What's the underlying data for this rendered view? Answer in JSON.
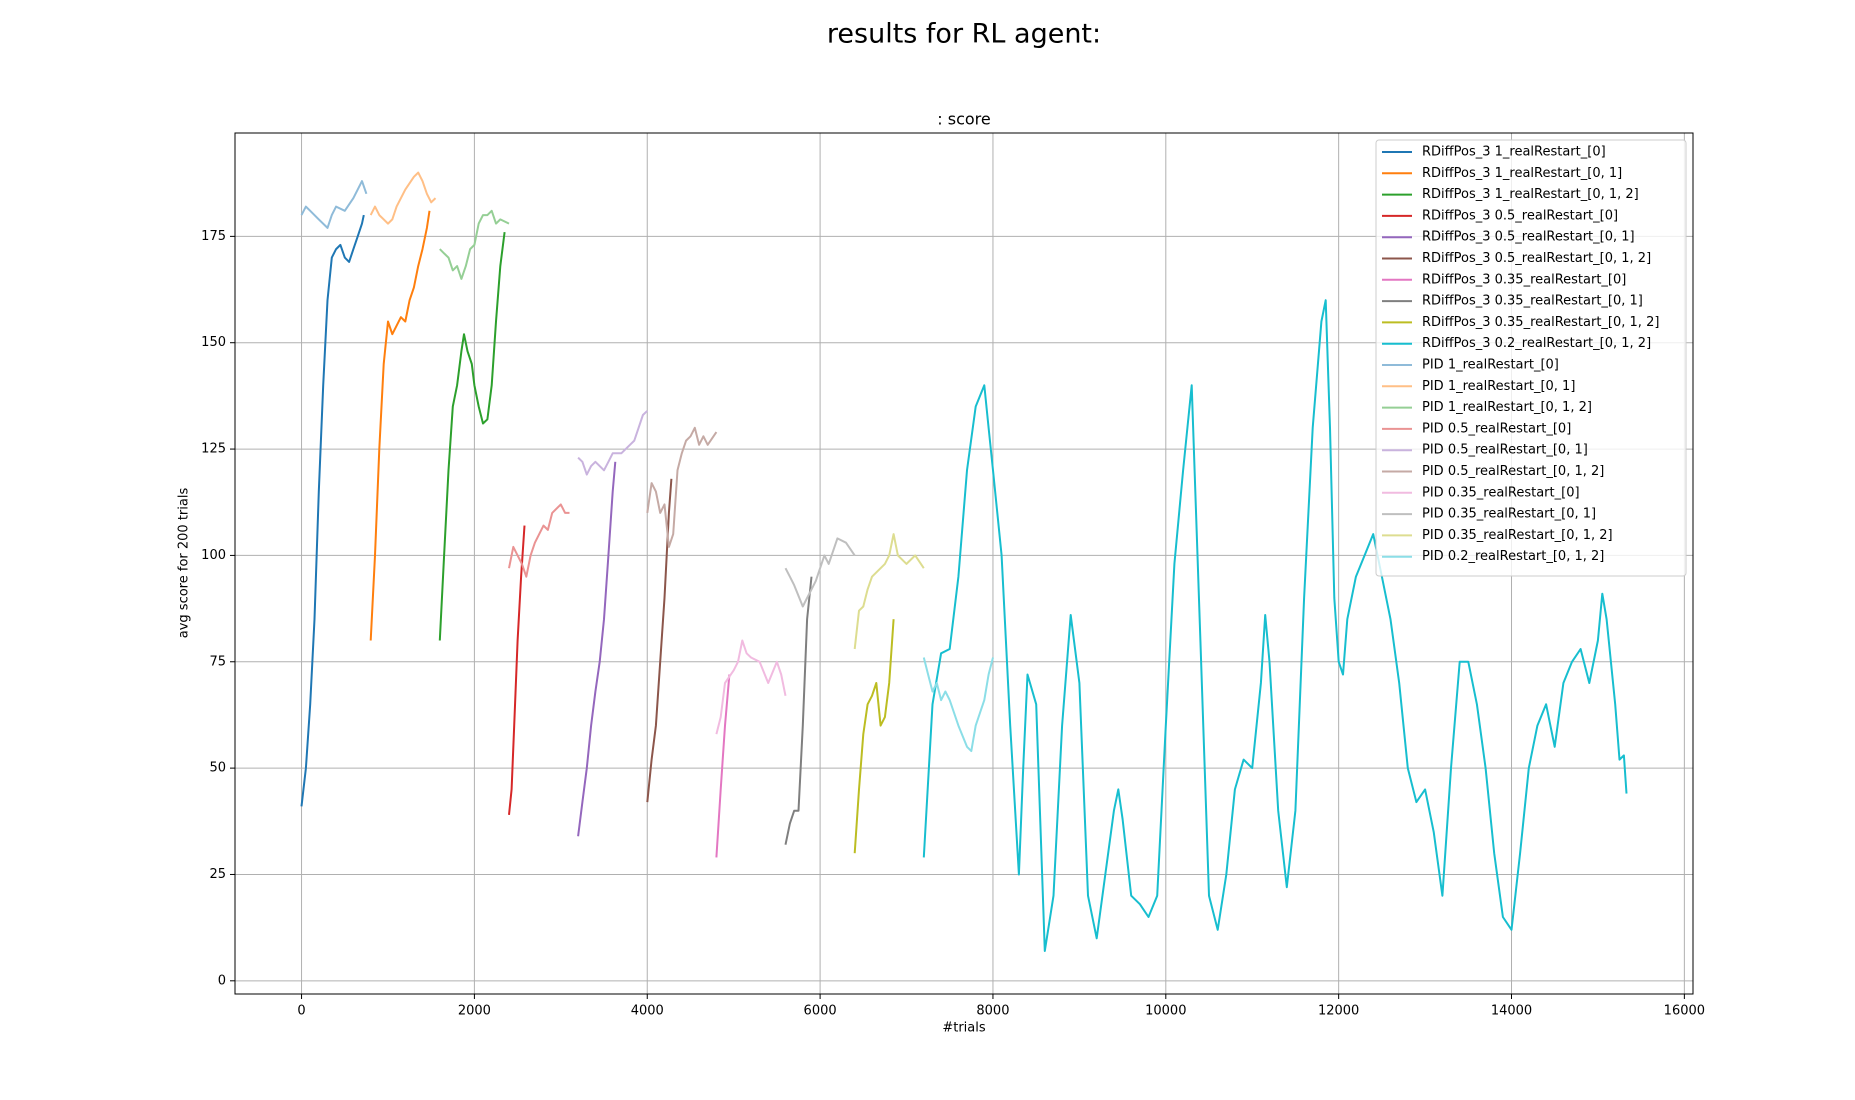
{
  "chart_data": {
    "type": "line",
    "title": "results for RL agent:",
    "subtitle": ": score",
    "x_label": "#trials",
    "y_label": "avg score for 200 trials",
    "xlim": [
      -770,
      16100
    ],
    "ylim": [
      -3.1,
      199.3
    ],
    "xticks": [
      0,
      2000,
      4000,
      6000,
      8000,
      10000,
      12000,
      14000,
      16000
    ],
    "yticks": [
      0,
      25,
      50,
      75,
      100,
      125,
      150,
      175
    ],
    "grid": true,
    "legend": "upper right",
    "series": [
      {
        "name": "RDiffPos_3 1_realRestart_[0]",
        "color": "#1f77b4",
        "x": [
          0,
          50,
          100,
          150,
          200,
          250,
          300,
          350,
          400,
          450,
          500,
          550,
          600,
          650,
          700,
          720
        ],
        "values": [
          41,
          50,
          65,
          85,
          115,
          140,
          160,
          170,
          172,
          173,
          170,
          169,
          172,
          175,
          178,
          180
        ]
      },
      {
        "name": "RDiffPos_3 1_realRestart_[0, 1]",
        "color": "#ff7f0e",
        "x": [
          800,
          850,
          900,
          950,
          1000,
          1050,
          1100,
          1150,
          1200,
          1250,
          1300,
          1350,
          1400,
          1450,
          1480
        ],
        "values": [
          80,
          100,
          125,
          145,
          155,
          152,
          154,
          156,
          155,
          160,
          163,
          168,
          172,
          177,
          181
        ]
      },
      {
        "name": "RDiffPos_3 1_realRestart_[0, 1, 2]",
        "color": "#2ca02c",
        "x": [
          1600,
          1650,
          1700,
          1750,
          1800,
          1850,
          1880,
          1920,
          1970,
          2000,
          2050,
          2100,
          2150,
          2200,
          2250,
          2300,
          2350
        ],
        "values": [
          80,
          100,
          120,
          135,
          140,
          148,
          152,
          148,
          145,
          140,
          135,
          131,
          132,
          140,
          155,
          168,
          176
        ]
      },
      {
        "name": "RDiffPos_3 0.5_realRestart_[0]",
        "color": "#d62728",
        "x": [
          2400,
          2430,
          2460,
          2500,
          2540,
          2580
        ],
        "values": [
          39,
          45,
          60,
          80,
          95,
          107
        ]
      },
      {
        "name": "RDiffPos_3 0.5_realRestart_[0, 1]",
        "color": "#9467bd",
        "x": [
          3200,
          3250,
          3300,
          3350,
          3400,
          3450,
          3500,
          3550,
          3600,
          3630
        ],
        "values": [
          34,
          42,
          50,
          60,
          68,
          75,
          85,
          100,
          115,
          122
        ]
      },
      {
        "name": "RDiffPos_3 0.5_realRestart_[0, 1, 2]",
        "color": "#8c564b",
        "x": [
          4000,
          4050,
          4100,
          4150,
          4200,
          4250,
          4280
        ],
        "values": [
          42,
          52,
          60,
          75,
          90,
          110,
          118
        ]
      },
      {
        "name": "RDiffPos_3 0.35_realRestart_[0]",
        "color": "#e377c2",
        "x": [
          4800,
          4850,
          4900,
          4950
        ],
        "values": [
          29,
          45,
          60,
          72
        ]
      },
      {
        "name": "RDiffPos_3 0.35_realRestart_[0, 1]",
        "color": "#7f7f7f",
        "x": [
          5600,
          5650,
          5700,
          5750,
          5800,
          5850,
          5900
        ],
        "values": [
          32,
          37,
          40,
          40,
          60,
          85,
          95
        ]
      },
      {
        "name": "RDiffPos_3 0.35_realRestart_[0, 1, 2]",
        "color": "#bcbd22",
        "x": [
          6400,
          6450,
          6500,
          6550,
          6600,
          6650,
          6700,
          6750,
          6800,
          6850
        ],
        "values": [
          30,
          45,
          58,
          65,
          67,
          70,
          60,
          62,
          70,
          85
        ]
      },
      {
        "name": "RDiffPos_3 0.2_realRestart_[0, 1, 2]",
        "color": "#17becf",
        "x": [
          7200,
          7300,
          7400,
          7500,
          7600,
          7700,
          7800,
          7900,
          7950,
          8000,
          8100,
          8200,
          8300,
          8350,
          8400,
          8500,
          8600,
          8700,
          8800,
          8900,
          9000,
          9100,
          9200,
          9300,
          9400,
          9450,
          9500,
          9600,
          9700,
          9800,
          9900,
          10000,
          10100,
          10200,
          10300,
          10400,
          10500,
          10600,
          10700,
          10800,
          10900,
          11000,
          11100,
          11150,
          11200,
          11300,
          11400,
          11500,
          11600,
          11700,
          11800,
          11850,
          11900,
          11950,
          12000,
          12050,
          12100,
          12200,
          12300,
          12400,
          12500,
          12600,
          12700,
          12800,
          12900,
          13000,
          13100,
          13200,
          13300,
          13400,
          13500,
          13600,
          13700,
          13800,
          13900,
          14000,
          14100,
          14200,
          14300,
          14400,
          14500,
          14600,
          14700,
          14800,
          14900,
          15000,
          15050,
          15100,
          15200,
          15250,
          15300,
          15330
        ],
        "values": [
          29,
          65,
          77,
          78,
          95,
          120,
          135,
          140,
          130,
          120,
          100,
          60,
          25,
          50,
          72,
          65,
          7,
          20,
          60,
          86,
          70,
          20,
          10,
          25,
          40,
          45,
          38,
          20,
          18,
          15,
          20,
          60,
          98,
          120,
          140,
          80,
          20,
          12,
          25,
          45,
          52,
          50,
          70,
          86,
          75,
          40,
          22,
          40,
          90,
          130,
          155,
          160,
          130,
          90,
          75,
          72,
          85,
          95,
          100,
          105,
          95,
          85,
          70,
          50,
          42,
          45,
          35,
          20,
          50,
          75,
          75,
          65,
          50,
          30,
          15,
          12,
          30,
          50,
          60,
          65,
          55,
          70,
          75,
          78,
          70,
          80,
          91,
          85,
          65,
          52,
          53,
          44
        ]
      },
      {
        "name": "PID 1_realRestart_[0]",
        "color": "#8fbbd9",
        "x": [
          0,
          50,
          100,
          200,
          300,
          350,
          400,
          500,
          600,
          700,
          750
        ],
        "values": [
          180,
          182,
          181,
          179,
          177,
          180,
          182,
          181,
          184,
          188,
          185
        ]
      },
      {
        "name": "PID 1_realRestart_[0, 1]",
        "color": "#ffbf86",
        "x": [
          800,
          850,
          900,
          1000,
          1050,
          1100,
          1200,
          1300,
          1350,
          1400,
          1450,
          1500,
          1550
        ],
        "values": [
          180,
          182,
          180,
          178,
          179,
          182,
          186,
          189,
          190,
          188,
          185,
          183,
          184
        ]
      },
      {
        "name": "PID 1_realRestart_[0, 1, 2]",
        "color": "#95cf95",
        "x": [
          1600,
          1650,
          1700,
          1750,
          1800,
          1850,
          1900,
          1950,
          2000,
          2050,
          2100,
          2150,
          2200,
          2250,
          2300,
          2400
        ],
        "values": [
          172,
          171,
          170,
          167,
          168,
          165,
          168,
          172,
          173,
          178,
          180,
          180,
          181,
          178,
          179,
          178
        ]
      },
      {
        "name": "PID 0.5_realRestart_[0]",
        "color": "#ea9393",
        "x": [
          2400,
          2450,
          2500,
          2550,
          2600,
          2650,
          2700,
          2800,
          2850,
          2900,
          3000,
          3050,
          3100
        ],
        "values": [
          97,
          102,
          100,
          98,
          95,
          100,
          103,
          107,
          106,
          110,
          112,
          110,
          110
        ]
      },
      {
        "name": "PID 0.5_realRestart_[0, 1]",
        "color": "#c9b3de",
        "x": [
          3200,
          3250,
          3300,
          3350,
          3400,
          3500,
          3550,
          3600,
          3700,
          3800,
          3850,
          3900,
          3950,
          4000
        ],
        "values": [
          123,
          122,
          119,
          121,
          122,
          120,
          122,
          124,
          124,
          126,
          127,
          130,
          133,
          134
        ]
      },
      {
        "name": "PID 0.5_realRestart_[0, 1, 2]",
        "color": "#c5aaa5",
        "x": [
          4000,
          4050,
          4100,
          4150,
          4200,
          4250,
          4300,
          4350,
          4400,
          4450,
          4500,
          4550,
          4600,
          4650,
          4700,
          4800
        ],
        "values": [
          110,
          117,
          115,
          110,
          112,
          102,
          105,
          120,
          124,
          127,
          128,
          130,
          126,
          128,
          126,
          129
        ]
      },
      {
        "name": "PID 0.35_realRestart_[0]",
        "color": "#f1bbe0",
        "x": [
          4800,
          4850,
          4900,
          5000,
          5050,
          5100,
          5150,
          5200,
          5300,
          5400,
          5500,
          5550,
          5600
        ],
        "values": [
          58,
          62,
          70,
          73,
          75,
          80,
          77,
          76,
          75,
          70,
          75,
          72,
          67
        ]
      },
      {
        "name": "PID 0.35_realRestart_[0, 1]",
        "color": "#bfbfbf",
        "x": [
          5600,
          5650,
          5700,
          5800,
          5850,
          5900,
          5950,
          6000,
          6050,
          6100,
          6200,
          6300,
          6400
        ],
        "values": [
          97,
          95,
          93,
          88,
          90,
          92,
          94,
          97,
          100,
          98,
          104,
          103,
          100
        ]
      },
      {
        "name": "PID 0.35_realRestart_[0, 1, 2]",
        "color": "#dddd90",
        "x": [
          6400,
          6450,
          6500,
          6550,
          6600,
          6700,
          6750,
          6800,
          6850,
          6900,
          7000,
          7100,
          7200
        ],
        "values": [
          78,
          87,
          88,
          92,
          95,
          97,
          98,
          100,
          105,
          100,
          98,
          100,
          97
        ]
      },
      {
        "name": "PID 0.2_realRestart_[0, 1, 2]",
        "color": "#8bdee7",
        "x": [
          7200,
          7250,
          7300,
          7350,
          7400,
          7450,
          7500,
          7600,
          7700,
          7750,
          7800,
          7900,
          7950,
          8000
        ],
        "values": [
          76,
          72,
          68,
          70,
          66,
          68,
          66,
          60,
          55,
          54,
          60,
          66,
          72,
          76
        ]
      }
    ]
  }
}
